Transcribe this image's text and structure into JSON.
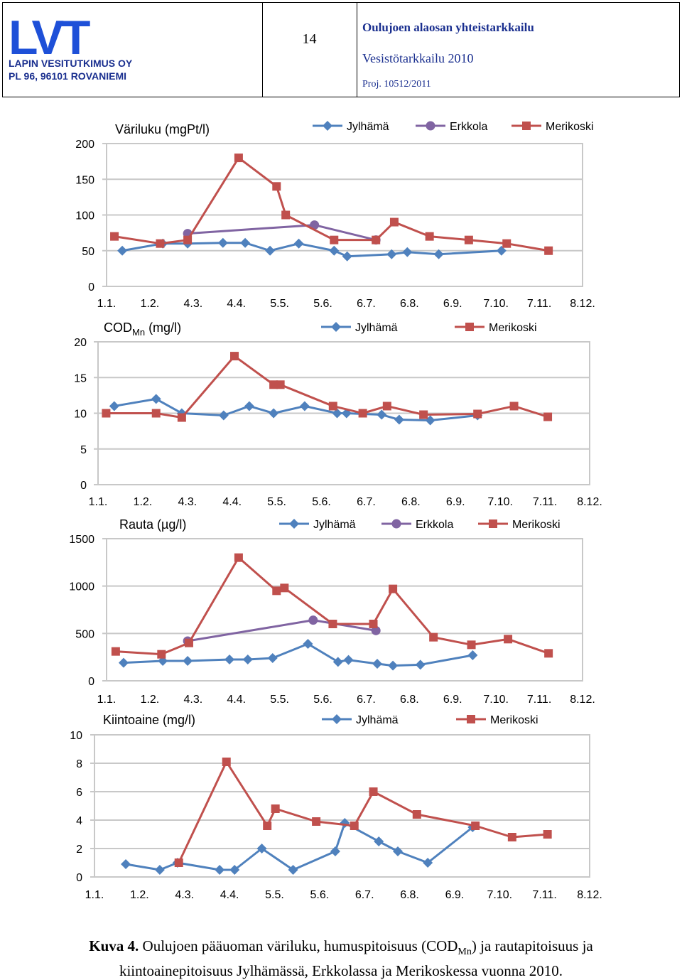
{
  "header": {
    "logo_text": "LVT",
    "company_name": "LAPIN VESITUTKIMUS OY",
    "company_address": "PL 96, 96101 ROVANIEMI",
    "page_number": "14",
    "title": "Oulujoen alaosan yhteistarkkailu",
    "subtitle": "Vesistötarkkailu 2010",
    "project": "Proj. 10512/2011"
  },
  "colors": {
    "jylhama": "#4f81bd",
    "erkkola": "#8064a2",
    "merikoski": "#c0504d"
  },
  "chart_data": [
    {
      "type": "line",
      "title": "Väriluku (mgPt/l)",
      "title_sub": "",
      "title_unit": "",
      "x_ticks": [
        "1.1.",
        "1.2.",
        "4.3.",
        "4.4.",
        "5.5.",
        "5.6.",
        "6.7.",
        "6.8.",
        "6.9.",
        "7.10.",
        "7.11.",
        "8.12."
      ],
      "ylim": [
        0,
        200
      ],
      "y_ticks": [
        0,
        50,
        100,
        150,
        200
      ],
      "legend": [
        "Jylhämä",
        "Erkkola",
        "Merikoski"
      ],
      "series": [
        {
          "name": "Jylhämä",
          "marker": "diamond",
          "x": [
            "2010-01-13",
            "2010-02-13",
            "2010-03-04",
            "2010-03-31",
            "2010-04-17",
            "2010-05-06",
            "2010-05-28",
            "2010-06-24",
            "2010-07-04",
            "2010-08-07",
            "2010-08-19",
            "2010-09-12",
            "2010-10-30"
          ],
          "y": [
            50,
            60,
            60,
            61,
            61,
            50,
            60,
            50,
            42,
            45,
            48,
            45,
            50
          ]
        },
        {
          "name": "Erkkola",
          "marker": "circle",
          "x": [
            "2010-03-04",
            "2010-06-09",
            "2010-07-26"
          ],
          "y": [
            74,
            86,
            65
          ]
        },
        {
          "name": "Merikoski",
          "marker": "square",
          "x": [
            "2010-01-07",
            "2010-02-11",
            "2010-03-04",
            "2010-04-12",
            "2010-05-11",
            "2010-05-18",
            "2010-06-24",
            "2010-07-26",
            "2010-08-09",
            "2010-09-05",
            "2010-10-05",
            "2010-11-03",
            "2010-12-05"
          ],
          "y": [
            70,
            60,
            65,
            180,
            140,
            100,
            65,
            65,
            90,
            70,
            65,
            60,
            50
          ]
        }
      ]
    },
    {
      "type": "line",
      "title": "COD",
      "title_sub": "Mn",
      "title_unit": " (mg/l)",
      "x_ticks": [
        "1.1.",
        "1.2.",
        "4.3.",
        "4.4.",
        "5.5.",
        "5.6.",
        "6.7.",
        "6.8.",
        "6.9.",
        "7.10.",
        "7.11.",
        "8.12."
      ],
      "ylim": [
        0,
        20
      ],
      "y_ticks": [
        0,
        5,
        10,
        15,
        20
      ],
      "legend": [
        "Jylhämä",
        "Merikoski"
      ],
      "series": [
        {
          "name": "Jylhämä",
          "marker": "diamond",
          "x": [
            "2010-01-13",
            "2010-02-13",
            "2010-03-04",
            "2010-04-04",
            "2010-04-23",
            "2010-05-11",
            "2010-06-03",
            "2010-06-27",
            "2010-07-04",
            "2010-07-30",
            "2010-08-12",
            "2010-09-04",
            "2010-10-09"
          ],
          "y": [
            11,
            12,
            10,
            9.7,
            11,
            10,
            11,
            10,
            10,
            9.8,
            9.1,
            9,
            9.7
          ]
        },
        {
          "name": "Merikoski",
          "marker": "square",
          "x": [
            "2010-01-07",
            "2010-02-13",
            "2010-03-04",
            "2010-04-12",
            "2010-05-11",
            "2010-05-16",
            "2010-06-24",
            "2010-07-16",
            "2010-08-03",
            "2010-08-30",
            "2010-10-09",
            "2010-11-05",
            "2010-11-30"
          ],
          "y": [
            10,
            10,
            9.4,
            18,
            14,
            14,
            11,
            10,
            11,
            9.8,
            9.9,
            11,
            9.5
          ]
        }
      ]
    },
    {
      "type": "line",
      "title": "Rauta (µg/l)",
      "title_sub": "",
      "title_unit": "",
      "x_ticks": [
        "1.1.",
        "1.2.",
        "4.3.",
        "4.4.",
        "5.5.",
        "5.6.",
        "6.7.",
        "6.8.",
        "6.9.",
        "7.10.",
        "7.11.",
        "8.12."
      ],
      "ylim": [
        0,
        1500
      ],
      "y_ticks": [
        0,
        500,
        1000,
        1500
      ],
      "legend": [
        "Jylhämä",
        "Erkkola",
        "Merikoski"
      ],
      "series": [
        {
          "name": "Jylhämä",
          "marker": "diamond",
          "x": [
            "2010-01-14",
            "2010-02-13",
            "2010-03-04",
            "2010-04-05",
            "2010-04-19",
            "2010-05-08",
            "2010-06-04",
            "2010-06-27",
            "2010-07-05",
            "2010-07-27",
            "2010-08-08",
            "2010-08-29",
            "2010-10-08"
          ],
          "y": [
            190,
            210,
            210,
            225,
            225,
            240,
            390,
            200,
            220,
            180,
            160,
            170,
            270
          ]
        },
        {
          "name": "Erkkola",
          "marker": "circle",
          "x": [
            "2010-03-04",
            "2010-06-08",
            "2010-07-26"
          ],
          "y": [
            420,
            640,
            530
          ]
        },
        {
          "name": "Merikoski",
          "marker": "square",
          "x": [
            "2010-01-08",
            "2010-02-12",
            "2010-03-05",
            "2010-04-12",
            "2010-05-11",
            "2010-05-17",
            "2010-06-23",
            "2010-07-24",
            "2010-08-08",
            "2010-09-08",
            "2010-10-07",
            "2010-11-04",
            "2010-12-05"
          ],
          "y": [
            310,
            280,
            400,
            1300,
            950,
            980,
            600,
            600,
            970,
            460,
            380,
            440,
            290
          ]
        }
      ]
    },
    {
      "type": "line",
      "title": "Kiintoaine (mg/l)",
      "title_sub": "",
      "title_unit": "",
      "x_ticks": [
        "1.1.",
        "1.2.",
        "4.3.",
        "4.4.",
        "5.5.",
        "5.6.",
        "6.7.",
        "6.8.",
        "6.9.",
        "7.10.",
        "7.11.",
        "8.12."
      ],
      "ylim": [
        0,
        10
      ],
      "y_ticks": [
        0,
        2,
        4,
        6,
        8,
        10
      ],
      "legend": [
        "Jylhämä",
        "Merikoski"
      ],
      "series": [
        {
          "name": "Jylhämä",
          "marker": "diamond",
          "x": [
            "2010-01-24",
            "2010-02-18",
            "2010-03-03",
            "2010-04-03",
            "2010-04-14",
            "2010-05-04",
            "2010-05-27",
            "2010-06-27",
            "2010-07-04",
            "2010-07-29",
            "2010-08-12",
            "2010-09-03",
            "2010-10-06"
          ],
          "y": [
            0.9,
            0.5,
            1,
            0.5,
            0.5,
            2,
            0.5,
            1.8,
            3.8,
            2.5,
            1.8,
            1,
            3.5
          ]
        },
        {
          "name": "Merikoski",
          "marker": "square",
          "x": [
            "2010-03-04",
            "2010-04-08",
            "2010-05-08",
            "2010-05-14",
            "2010-06-13",
            "2010-07-11",
            "2010-07-25",
            "2010-08-26",
            "2010-10-08",
            "2010-11-04",
            "2010-11-30"
          ],
          "y": [
            1,
            8.1,
            3.6,
            4.8,
            3.9,
            3.6,
            6,
            4.4,
            3.6,
            2.8,
            3
          ]
        }
      ]
    }
  ],
  "caption": {
    "label": "Kuva 4.",
    "line1_text": " Oulujoen pääuoman väriluku, humuspitoisuus (COD",
    "line1_sub": "Mn",
    "line1_end": ") ja rautapitoisuus ja",
    "line2": "kiintoainepitoisuus Jylhämässä, Erkkolassa ja Merikoskessa vuonna 2010."
  }
}
